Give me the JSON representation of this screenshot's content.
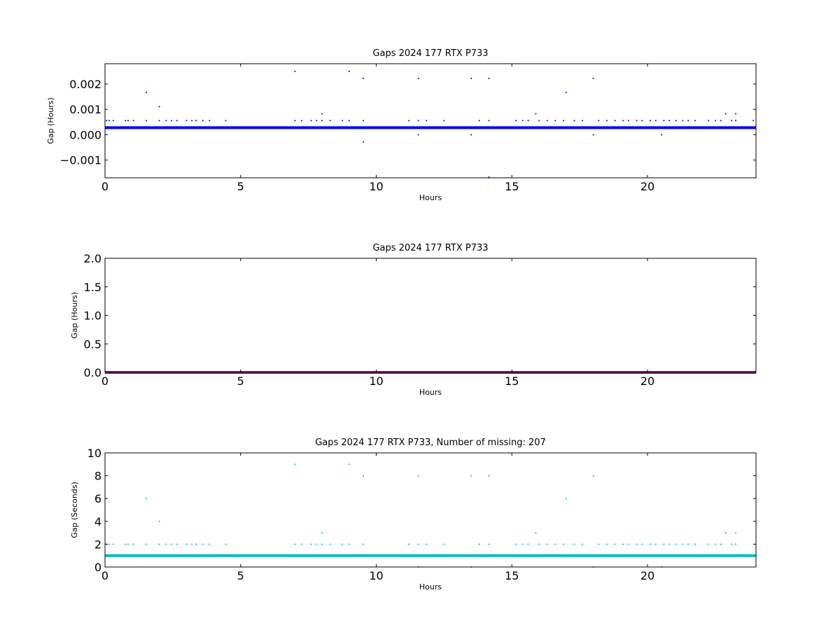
{
  "chart_data": [
    {
      "type": "scatter",
      "title": "Gaps 2024 177 RTX  P733",
      "xlabel": "Hours",
      "ylabel": "Gap (Hours)",
      "xlim": [
        0,
        24
      ],
      "ylim": [
        -0.0017,
        0.0028
      ],
      "xticks": [
        0,
        5,
        10,
        15,
        20
      ],
      "xtick_labels": [
        "0",
        "5",
        "10",
        "15",
        "20"
      ],
      "yticks": [
        -0.001,
        0.0,
        0.001,
        0.002
      ],
      "ytick_labels": [
        "−0.001",
        "0.000",
        "0.001",
        "0.002"
      ],
      "grid": false,
      "legend": "none",
      "color": "#0000ff",
      "baseline": {
        "y": 0.000278,
        "x_range": [
          0,
          24
        ]
      },
      "series": [
        {
          "points": [
            [
              1.52,
              0.00167
            ],
            [
              2.0,
              0.00111
            ],
            [
              7.0,
              0.0025
            ],
            [
              8.0,
              0.00083
            ],
            [
              9.0,
              0.0025
            ],
            [
              9.52,
              0.00222
            ],
            [
              9.52,
              -0.00028
            ],
            [
              11.55,
              0.00222
            ],
            [
              11.55,
              0.0
            ],
            [
              13.5,
              0.00222
            ],
            [
              13.5,
              0.0
            ],
            [
              14.15,
              0.00222
            ],
            [
              14.15,
              -0.00167
            ],
            [
              15.88,
              0.00083
            ],
            [
              17.0,
              0.00167
            ],
            [
              18.0,
              0.00222
            ],
            [
              18.0,
              0.0
            ],
            [
              20.52,
              0.0
            ],
            [
              22.88,
              0.00083
            ],
            [
              23.25,
              0.00083
            ],
            [
              0.05,
              0.00056
            ],
            [
              0.15,
              0.00056
            ],
            [
              0.3,
              0.00056
            ],
            [
              0.75,
              0.00056
            ],
            [
              0.85,
              0.00056
            ],
            [
              1.05,
              0.00056
            ],
            [
              1.52,
              0.00056
            ],
            [
              2.0,
              0.00056
            ],
            [
              2.25,
              0.00056
            ],
            [
              2.45,
              0.00056
            ],
            [
              2.65,
              0.00056
            ],
            [
              3.0,
              0.00056
            ],
            [
              3.2,
              0.00056
            ],
            [
              3.35,
              0.00056
            ],
            [
              3.6,
              0.00056
            ],
            [
              3.85,
              0.00056
            ],
            [
              4.45,
              0.00056
            ],
            [
              7.0,
              0.00056
            ],
            [
              7.25,
              0.00056
            ],
            [
              7.6,
              0.00056
            ],
            [
              7.8,
              0.00056
            ],
            [
              8.0,
              0.00056
            ],
            [
              8.3,
              0.00056
            ],
            [
              8.75,
              0.00056
            ],
            [
              9.0,
              0.00056
            ],
            [
              9.52,
              0.00056
            ],
            [
              11.2,
              0.00056
            ],
            [
              11.55,
              0.00056
            ],
            [
              11.85,
              0.00056
            ],
            [
              12.5,
              0.00056
            ],
            [
              13.8,
              0.00056
            ],
            [
              14.15,
              0.00056
            ],
            [
              15.15,
              0.00056
            ],
            [
              15.4,
              0.00056
            ],
            [
              15.6,
              0.00056
            ],
            [
              16.0,
              0.00056
            ],
            [
              16.3,
              0.00056
            ],
            [
              16.6,
              0.00056
            ],
            [
              16.9,
              0.00056
            ],
            [
              17.3,
              0.00056
            ],
            [
              17.6,
              0.00056
            ],
            [
              18.2,
              0.00056
            ],
            [
              18.5,
              0.00056
            ],
            [
              18.8,
              0.00056
            ],
            [
              19.1,
              0.00056
            ],
            [
              19.3,
              0.00056
            ],
            [
              19.6,
              0.00056
            ],
            [
              19.8,
              0.00056
            ],
            [
              20.1,
              0.00056
            ],
            [
              20.3,
              0.00056
            ],
            [
              20.6,
              0.00056
            ],
            [
              20.8,
              0.00056
            ],
            [
              21.05,
              0.00056
            ],
            [
              21.3,
              0.00056
            ],
            [
              21.5,
              0.00056
            ],
            [
              21.75,
              0.00056
            ],
            [
              22.25,
              0.00056
            ],
            [
              22.5,
              0.00056
            ],
            [
              22.7,
              0.00056
            ],
            [
              23.1,
              0.00056
            ],
            [
              23.25,
              0.00056
            ],
            [
              23.9,
              0.00056
            ]
          ]
        }
      ]
    },
    {
      "type": "line",
      "title": "Gaps 2024 177 RTX  P733",
      "xlabel": "Hours",
      "ylabel": "Gap (Hours)",
      "xlim": [
        0,
        24
      ],
      "ylim": [
        0.0,
        2.0
      ],
      "xticks": [
        0,
        5,
        10,
        15,
        20
      ],
      "xtick_labels": [
        "0",
        "5",
        "10",
        "15",
        "20"
      ],
      "yticks": [
        0.0,
        0.5,
        1.0,
        1.5,
        2.0
      ],
      "ytick_labels": [
        "0.0",
        "0.5",
        "1.0",
        "1.5",
        "2.0"
      ],
      "grid": false,
      "legend": "none",
      "color": "#aa00aa",
      "baseline": {
        "y": 0.0,
        "x_range": [
          0,
          24
        ]
      },
      "series": []
    },
    {
      "type": "scatter",
      "title": "Gaps 2024 177 RTX  P733, Number of missing: 207",
      "xlabel": "Hours",
      "ylabel": "Gap (Seconds)",
      "xlim": [
        0,
        24
      ],
      "ylim": [
        0,
        10
      ],
      "xticks": [
        0,
        5,
        10,
        15,
        20
      ],
      "xtick_labels": [
        "0",
        "5",
        "10",
        "15",
        "20"
      ],
      "yticks": [
        0,
        2,
        4,
        6,
        8,
        10
      ],
      "ytick_labels": [
        "0",
        "2",
        "4",
        "6",
        "8",
        "10"
      ],
      "grid": false,
      "legend": "none",
      "color": "#00bbbb",
      "baseline": {
        "y": 1.0,
        "x_range": [
          0,
          24
        ]
      },
      "series": [
        {
          "points": [
            [
              1.52,
              6
            ],
            [
              2.0,
              4
            ],
            [
              7.0,
              9
            ],
            [
              8.0,
              3
            ],
            [
              9.0,
              9
            ],
            [
              9.52,
              8
            ],
            [
              11.55,
              8
            ],
            [
              11.55,
              0
            ],
            [
              13.5,
              8
            ],
            [
              13.5,
              0
            ],
            [
              14.15,
              8
            ],
            [
              15.88,
              3
            ],
            [
              17.0,
              6
            ],
            [
              18.0,
              8
            ],
            [
              18.0,
              0
            ],
            [
              20.52,
              0
            ],
            [
              22.88,
              3
            ],
            [
              23.25,
              3
            ],
            [
              0.05,
              2
            ],
            [
              0.15,
              2
            ],
            [
              0.3,
              2
            ],
            [
              0.75,
              2
            ],
            [
              0.85,
              2
            ],
            [
              1.05,
              2
            ],
            [
              1.52,
              2
            ],
            [
              2.0,
              2
            ],
            [
              2.25,
              2
            ],
            [
              2.45,
              2
            ],
            [
              2.65,
              2
            ],
            [
              3.0,
              2
            ],
            [
              3.2,
              2
            ],
            [
              3.35,
              2
            ],
            [
              3.6,
              2
            ],
            [
              3.85,
              2
            ],
            [
              4.45,
              2
            ],
            [
              7.0,
              2
            ],
            [
              7.25,
              2
            ],
            [
              7.6,
              2
            ],
            [
              7.8,
              2
            ],
            [
              8.0,
              2
            ],
            [
              8.3,
              2
            ],
            [
              8.75,
              2
            ],
            [
              9.0,
              2
            ],
            [
              9.52,
              2
            ],
            [
              11.2,
              2
            ],
            [
              11.55,
              2
            ],
            [
              11.85,
              2
            ],
            [
              12.5,
              2
            ],
            [
              13.8,
              2
            ],
            [
              14.15,
              2
            ],
            [
              15.15,
              2
            ],
            [
              15.4,
              2
            ],
            [
              15.6,
              2
            ],
            [
              16.0,
              2
            ],
            [
              16.3,
              2
            ],
            [
              16.6,
              2
            ],
            [
              16.9,
              2
            ],
            [
              17.3,
              2
            ],
            [
              17.6,
              2
            ],
            [
              18.2,
              2
            ],
            [
              18.5,
              2
            ],
            [
              18.8,
              2
            ],
            [
              19.1,
              2
            ],
            [
              19.3,
              2
            ],
            [
              19.6,
              2
            ],
            [
              19.8,
              2
            ],
            [
              20.1,
              2
            ],
            [
              20.3,
              2
            ],
            [
              20.6,
              2
            ],
            [
              20.8,
              2
            ],
            [
              21.05,
              2
            ],
            [
              21.3,
              2
            ],
            [
              21.5,
              2
            ],
            [
              21.75,
              2
            ],
            [
              22.25,
              2
            ],
            [
              22.5,
              2
            ],
            [
              22.7,
              2
            ],
            [
              23.1,
              2
            ],
            [
              23.25,
              2
            ]
          ]
        }
      ]
    }
  ]
}
